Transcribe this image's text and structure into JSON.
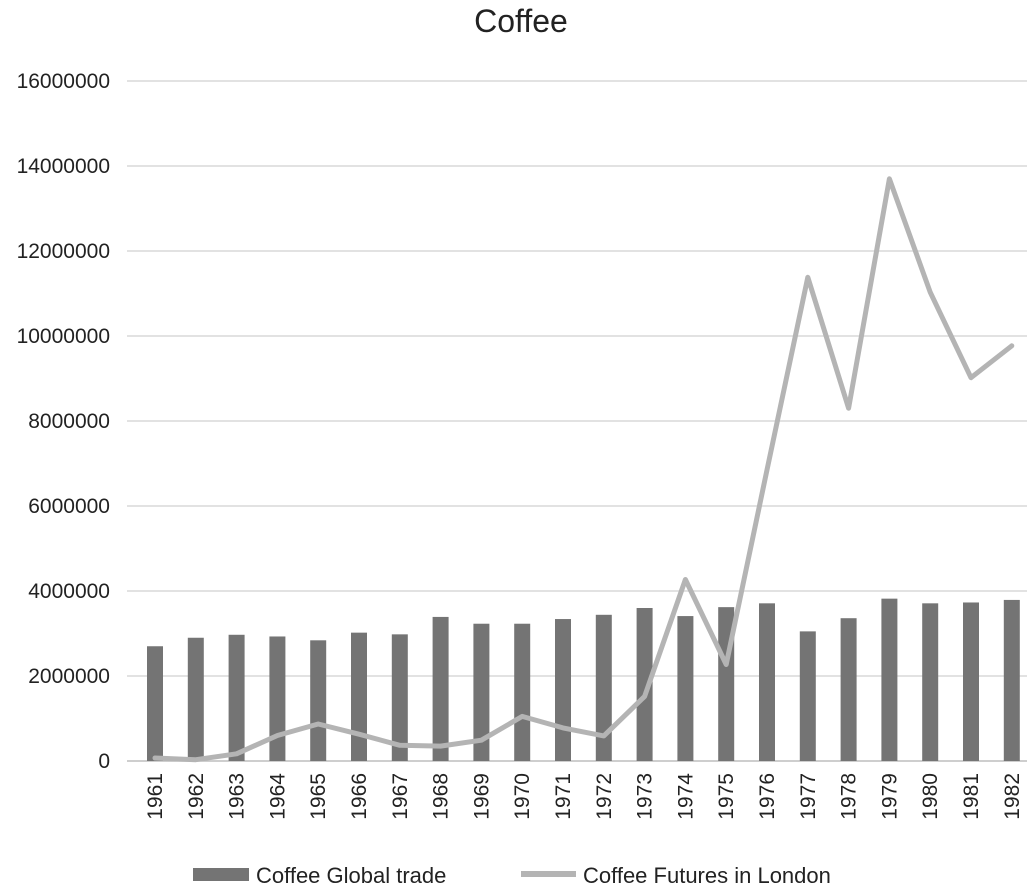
{
  "chart_data": {
    "type": "bar+line",
    "title": "Coffee",
    "categories": [
      "1961",
      "1962",
      "1963",
      "1964",
      "1965",
      "1966",
      "1967",
      "1968",
      "1969",
      "1970",
      "1971",
      "1972",
      "1973",
      "1974",
      "1975",
      "1976",
      "1977",
      "1978",
      "1979",
      "1980",
      "1981",
      "1982"
    ],
    "ylim": [
      0,
      16000000
    ],
    "yticks": [
      "0",
      "2000000",
      "4000000",
      "6000000",
      "8000000",
      "10000000",
      "12000000",
      "14000000",
      "16000000"
    ],
    "grid": true,
    "legend_position": "bottom",
    "series": [
      {
        "name": "Coffee Global trade",
        "type": "bar",
        "color": "#747474",
        "values": [
          2700000,
          2900000,
          2970000,
          2930000,
          2840000,
          3020000,
          2980000,
          3390000,
          3230000,
          3230000,
          3340000,
          3440000,
          3600000,
          3410000,
          3620000,
          3710000,
          3050000,
          3360000,
          3820000,
          3710000,
          3730000,
          3790000
        ]
      },
      {
        "name": "Coffee Futures in London",
        "type": "line",
        "color": "#b4b4b4",
        "values": [
          70000,
          30000,
          170000,
          600000,
          870000,
          630000,
          370000,
          350000,
          490000,
          1050000,
          780000,
          590000,
          1520000,
          4270000,
          2270000,
          6850000,
          11380000,
          8300000,
          13700000,
          11030000,
          9020000,
          9770000
        ]
      }
    ]
  }
}
